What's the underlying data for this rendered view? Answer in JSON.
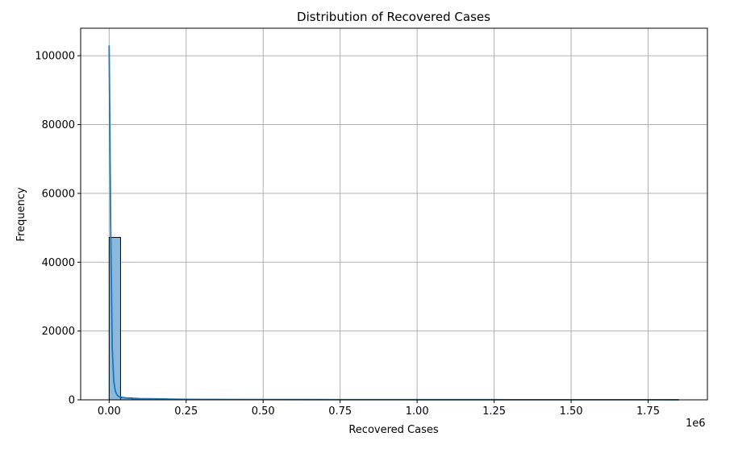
{
  "chart_data": {
    "type": "bar",
    "title": "Distribution of Recovered Cases",
    "xlabel": "Recovered Cases",
    "ylabel": "Frequency",
    "x_offset_label": "1e6",
    "xlim": [
      -0.0925,
      1.9425
    ],
    "ylim": [
      0,
      108000
    ],
    "x_ticks": [
      0.0,
      0.25,
      0.5,
      0.75,
      1.0,
      1.25,
      1.5,
      1.75
    ],
    "x_tick_labels": [
      "0.00",
      "0.25",
      "0.50",
      "0.75",
      "1.00",
      "1.25",
      "1.50",
      "1.75"
    ],
    "y_ticks": [
      0,
      20000,
      40000,
      60000,
      80000,
      100000
    ],
    "y_tick_labels": [
      "0",
      "20000",
      "40000",
      "60000",
      "80000",
      "100000"
    ],
    "grid": true,
    "bin_width": 0.037,
    "bins_start": [
      0.0,
      0.037,
      0.074,
      0.111,
      0.148,
      0.185,
      0.222
    ],
    "counts": [
      47200,
      600,
      300,
      200,
      300,
      150,
      80
    ],
    "kde": {
      "x": [
        0.0,
        0.005,
        0.01,
        0.015,
        0.02,
        0.025,
        0.03,
        0.035,
        0.04,
        0.05,
        0.06,
        0.075,
        0.1,
        0.15,
        0.2,
        0.25,
        0.3,
        0.5,
        0.75,
        1.0,
        1.25,
        1.5,
        1.75,
        1.85
      ],
      "y": [
        103000,
        50000,
        15000,
        5500,
        2500,
        1500,
        1000,
        900,
        750,
        600,
        500,
        450,
        350,
        300,
        200,
        150,
        120,
        80,
        60,
        50,
        40,
        30,
        20,
        15
      ]
    },
    "colors": {
      "bar_fill": "#8ab9db",
      "bar_edge": "#000000",
      "kde_line": "#1f77b4",
      "grid": "#b0b0b0"
    }
  }
}
